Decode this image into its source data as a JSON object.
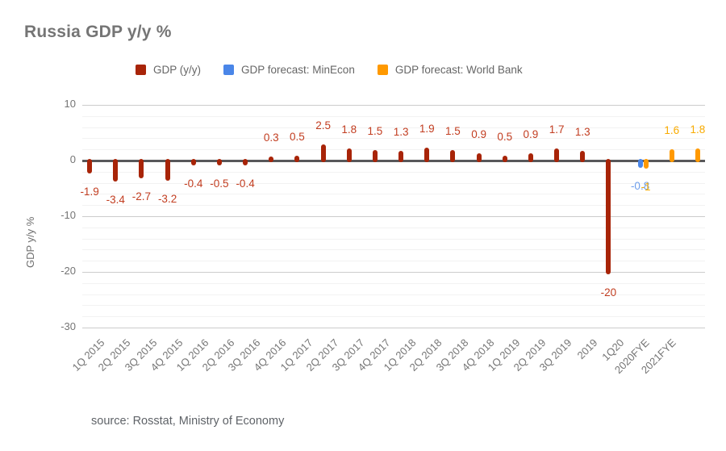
{
  "title": "Russia GDP y/y %",
  "source_note": "source: Rosstat, Ministry of Economy",
  "legend": {
    "items": [
      {
        "label": "GDP (y/y)",
        "color": "#a82408"
      },
      {
        "label": "GDP forecast: MinEcon",
        "color": "#4a86e8"
      },
      {
        "label": "GDP forecast: World Bank",
        "color": "#ff9900"
      }
    ]
  },
  "colors": {
    "background": "#ffffff",
    "title_text": "#757575",
    "axis_text": "#757575",
    "zero_axis": "#58585a",
    "grid_major": "#cccccc",
    "grid_minor": "#f2f2f2"
  },
  "chart_data": {
    "type": "bar",
    "title": "Russia GDP y/y %",
    "xlabel": "",
    "ylabel": "GDP y/y %",
    "ylim": [
      -30,
      10
    ],
    "yticks": [
      10,
      0,
      -10,
      -20,
      -30
    ],
    "minor_gridline_step": 2,
    "grid": true,
    "legend_position": "top",
    "categories": [
      "1Q 2015",
      "2Q 2015",
      "3Q 2015",
      "4Q 2015",
      "1Q 2016",
      "2Q 2016",
      "3Q 2016",
      "4Q 2016",
      "1Q 2017",
      "2Q 2017",
      "3Q 2017",
      "4Q 2017",
      "1Q 2018",
      "2Q 2018",
      "3Q 2018",
      "4Q 2018",
      "1Q 2019",
      "2Q 2019",
      "3Q 2019",
      "2019",
      "1Q20",
      "2020FYE",
      "2021FYE",
      ""
    ],
    "series": [
      {
        "name": "GDP (y/y)",
        "color": "#a82408",
        "label_color": "#c23d20",
        "values": [
          -1.9,
          -3.4,
          -2.7,
          -3.2,
          -0.4,
          -0.5,
          -0.4,
          0.3,
          0.5,
          2.5,
          1.8,
          1.5,
          1.3,
          1.9,
          1.5,
          0.9,
          0.5,
          0.9,
          1.7,
          1.3,
          -20,
          null,
          null,
          null
        ]
      },
      {
        "name": "GDP forecast: MinEcon",
        "color": "#4a86e8",
        "label_color": "#6d9eeb",
        "values": [
          null,
          null,
          null,
          null,
          null,
          null,
          null,
          null,
          null,
          null,
          null,
          null,
          null,
          null,
          null,
          null,
          null,
          null,
          null,
          null,
          null,
          -0.8,
          null,
          null
        ]
      },
      {
        "name": "GDP forecast: World Bank",
        "color": "#ff9900",
        "label_color": "#f9ab00",
        "values": [
          null,
          null,
          null,
          null,
          null,
          null,
          null,
          null,
          null,
          null,
          null,
          null,
          null,
          null,
          null,
          null,
          null,
          null,
          null,
          null,
          null,
          -1,
          1.6,
          1.8
        ]
      }
    ]
  }
}
